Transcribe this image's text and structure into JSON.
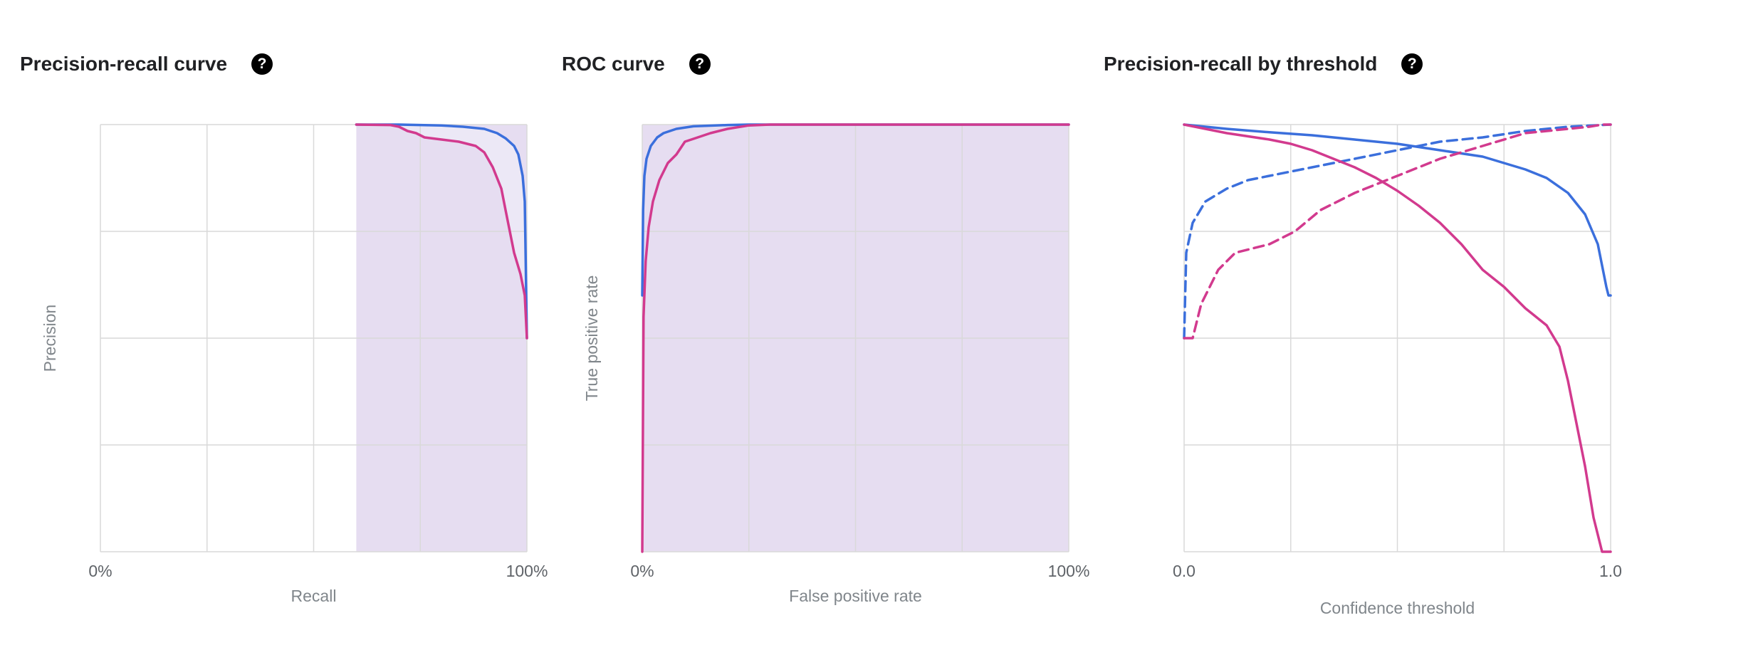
{
  "colors": {
    "blue": "#3b6fdc",
    "pink": "#d23a8e",
    "shade": "#e6ddf1",
    "shade_light": "#ece8f6",
    "grid": "#d9d9d9"
  },
  "help_icon": {
    "glyph": "?",
    "name": "question-circle-icon"
  },
  "chart_data": [
    {
      "type": "line",
      "title": "Precision-recall curve",
      "xlabel": "Recall",
      "ylabel": "Precision",
      "x_tick_labels": [
        "0%",
        "100%"
      ],
      "xlim": [
        0,
        1
      ],
      "ylim": [
        0,
        1
      ],
      "grid": true,
      "shaded_region_x": [
        0.6,
        1.0
      ],
      "series": [
        {
          "color": "blue",
          "points": [
            [
              0.6,
              1.0
            ],
            [
              0.7,
              1.0
            ],
            [
              0.8,
              0.998
            ],
            [
              0.85,
              0.995
            ],
            [
              0.9,
              0.99
            ],
            [
              0.93,
              0.98
            ],
            [
              0.95,
              0.968
            ],
            [
              0.97,
              0.95
            ],
            [
              0.98,
              0.93
            ],
            [
              0.99,
              0.88
            ],
            [
              0.995,
              0.82
            ],
            [
              1.0,
              0.5
            ]
          ]
        },
        {
          "color": "pink",
          "points": [
            [
              0.6,
              1.0
            ],
            [
              0.68,
              0.999
            ],
            [
              0.7,
              0.995
            ],
            [
              0.72,
              0.985
            ],
            [
              0.74,
              0.98
            ],
            [
              0.76,
              0.97
            ],
            [
              0.8,
              0.965
            ],
            [
              0.84,
              0.96
            ],
            [
              0.86,
              0.955
            ],
            [
              0.88,
              0.95
            ],
            [
              0.9,
              0.935
            ],
            [
              0.92,
              0.9
            ],
            [
              0.94,
              0.85
            ],
            [
              0.95,
              0.8
            ],
            [
              0.96,
              0.75
            ],
            [
              0.97,
              0.7
            ],
            [
              0.985,
              0.65
            ],
            [
              0.995,
              0.6
            ],
            [
              1.0,
              0.5
            ]
          ]
        }
      ]
    },
    {
      "type": "line",
      "title": "ROC curve",
      "xlabel": "False positive rate",
      "ylabel": "True positive rate",
      "x_tick_labels": [
        "0%",
        "100%"
      ],
      "xlim": [
        0,
        1
      ],
      "ylim": [
        0,
        1
      ],
      "grid": true,
      "shaded_region_x": [
        0.0,
        1.0
      ],
      "series": [
        {
          "color": "blue",
          "points": [
            [
              0,
              0.6
            ],
            [
              0.002,
              0.8
            ],
            [
              0.005,
              0.88
            ],
            [
              0.01,
              0.92
            ],
            [
              0.02,
              0.95
            ],
            [
              0.035,
              0.97
            ],
            [
              0.05,
              0.98
            ],
            [
              0.08,
              0.99
            ],
            [
              0.12,
              0.996
            ],
            [
              0.2,
              0.999
            ],
            [
              0.25,
              1.0
            ],
            [
              1.0,
              1.0
            ]
          ]
        },
        {
          "color": "pink",
          "points": [
            [
              0,
              0.0
            ],
            [
              0.003,
              0.55
            ],
            [
              0.008,
              0.68
            ],
            [
              0.015,
              0.76
            ],
            [
              0.025,
              0.82
            ],
            [
              0.04,
              0.87
            ],
            [
              0.06,
              0.91
            ],
            [
              0.08,
              0.93
            ],
            [
              0.1,
              0.96
            ],
            [
              0.13,
              0.97
            ],
            [
              0.16,
              0.98
            ],
            [
              0.2,
              0.99
            ],
            [
              0.25,
              0.998
            ],
            [
              0.3,
              1.0
            ],
            [
              1.0,
              1.0
            ]
          ]
        }
      ]
    },
    {
      "type": "line",
      "title": "Precision-recall by threshold",
      "xlabel": "Confidence threshold",
      "x_tick_labels": [
        "0.0",
        "1.0"
      ],
      "xlim": [
        0,
        1
      ],
      "ylim": [
        0,
        1
      ],
      "grid": true,
      "series": [
        {
          "color": "blue",
          "dashed": false,
          "points": [
            [
              0,
              1.0
            ],
            [
              0.1,
              0.99
            ],
            [
              0.2,
              0.982
            ],
            [
              0.3,
              0.975
            ],
            [
              0.4,
              0.965
            ],
            [
              0.5,
              0.955
            ],
            [
              0.6,
              0.94
            ],
            [
              0.7,
              0.925
            ],
            [
              0.8,
              0.895
            ],
            [
              0.85,
              0.875
            ],
            [
              0.9,
              0.84
            ],
            [
              0.94,
              0.79
            ],
            [
              0.97,
              0.72
            ],
            [
              0.99,
              0.62
            ],
            [
              0.995,
              0.6
            ],
            [
              1.0,
              0.6
            ]
          ]
        },
        {
          "color": "blue",
          "dashed": true,
          "points": [
            [
              0,
              0.5
            ],
            [
              0.005,
              0.7
            ],
            [
              0.02,
              0.77
            ],
            [
              0.05,
              0.82
            ],
            [
              0.1,
              0.85
            ],
            [
              0.15,
              0.87
            ],
            [
              0.2,
              0.88
            ],
            [
              0.3,
              0.9
            ],
            [
              0.4,
              0.92
            ],
            [
              0.5,
              0.94
            ],
            [
              0.6,
              0.96
            ],
            [
              0.7,
              0.97
            ],
            [
              0.8,
              0.985
            ],
            [
              0.9,
              0.995
            ],
            [
              1.0,
              1.0
            ]
          ]
        },
        {
          "color": "pink",
          "dashed": false,
          "points": [
            [
              0,
              1.0
            ],
            [
              0.05,
              0.99
            ],
            [
              0.1,
              0.98
            ],
            [
              0.2,
              0.965
            ],
            [
              0.25,
              0.955
            ],
            [
              0.3,
              0.94
            ],
            [
              0.35,
              0.92
            ],
            [
              0.4,
              0.9
            ],
            [
              0.45,
              0.875
            ],
            [
              0.5,
              0.845
            ],
            [
              0.55,
              0.81
            ],
            [
              0.6,
              0.77
            ],
            [
              0.65,
              0.72
            ],
            [
              0.7,
              0.66
            ],
            [
              0.75,
              0.62
            ],
            [
              0.8,
              0.57
            ],
            [
              0.85,
              0.53
            ],
            [
              0.88,
              0.48
            ],
            [
              0.9,
              0.4
            ],
            [
              0.92,
              0.3
            ],
            [
              0.94,
              0.2
            ],
            [
              0.96,
              0.08
            ],
            [
              0.98,
              0.0
            ],
            [
              1.0,
              0.0
            ]
          ]
        },
        {
          "color": "pink",
          "dashed": true,
          "points": [
            [
              0,
              0.5
            ],
            [
              0.02,
              0.5
            ],
            [
              0.04,
              0.58
            ],
            [
              0.08,
              0.66
            ],
            [
              0.12,
              0.7
            ],
            [
              0.2,
              0.72
            ],
            [
              0.26,
              0.75
            ],
            [
              0.32,
              0.8
            ],
            [
              0.4,
              0.84
            ],
            [
              0.5,
              0.88
            ],
            [
              0.6,
              0.92
            ],
            [
              0.7,
              0.95
            ],
            [
              0.8,
              0.98
            ],
            [
              0.9,
              0.99
            ],
            [
              0.95,
              0.995
            ],
            [
              0.98,
              1.0
            ],
            [
              1.0,
              1.0
            ]
          ]
        }
      ]
    }
  ]
}
